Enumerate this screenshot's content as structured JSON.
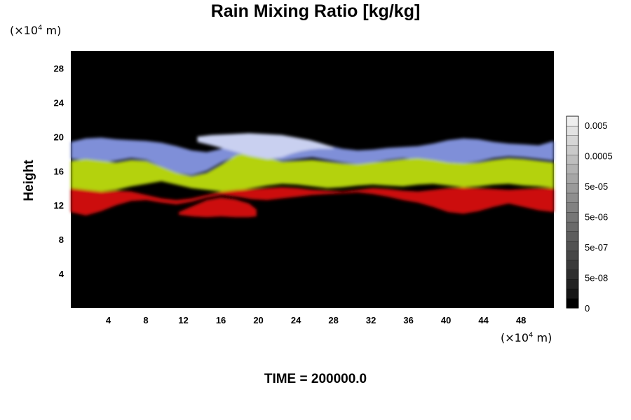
{
  "chart_data": {
    "type": "heatmap",
    "title": "Rain Mixing Ratio [kg/kg]",
    "ylabel": "Height",
    "xlabel": "",
    "x_unit": {
      "prefix": "(×10",
      "exp": "4",
      "suffix": " m)"
    },
    "y_unit": {
      "prefix": "(×10",
      "exp": "4",
      "suffix": " m)"
    },
    "xlim": [
      0,
      51.5
    ],
    "ylim": [
      0,
      30
    ],
    "x_ticks": [
      4,
      8,
      12,
      16,
      20,
      24,
      28,
      32,
      36,
      40,
      44,
      48
    ],
    "y_ticks": [
      4,
      8,
      12,
      16,
      20,
      24,
      28
    ],
    "background_color": "#000000",
    "fields": [
      {
        "name": "blue",
        "color": "#7f8fd8",
        "top": [
          19.4,
          19.8,
          19.9,
          19.7,
          19.6,
          19.5,
          19.3,
          18.9,
          18.4,
          18.2,
          18.6,
          19.6,
          20.1,
          20.2,
          20.1,
          19.8,
          19.4,
          19.0,
          18.6,
          18.4,
          18.5,
          18.7,
          18.8,
          18.9,
          19.2,
          19.6,
          19.8,
          19.7,
          19.4,
          19.2,
          19.1,
          19.0,
          19.5
        ],
        "bottom": [
          17.4,
          17.3,
          17.0,
          17.2,
          17.5,
          17.3,
          16.5,
          15.8,
          15.5,
          16.0,
          17.0,
          17.8,
          18.0,
          17.5,
          17.2,
          17.4,
          17.6,
          17.3,
          17.0,
          16.8,
          17.0,
          17.3,
          17.5,
          17.4,
          17.2,
          17.0,
          16.9,
          17.1,
          17.5,
          17.7,
          17.6,
          17.4,
          17.2
        ]
      },
      {
        "name": "green",
        "color": "#b4d20f",
        "top": [
          17.2,
          17.4,
          17.2,
          17.0,
          17.3,
          17.2,
          16.5,
          15.8,
          15.4,
          15.8,
          16.8,
          17.9,
          18.2,
          17.6,
          17.1,
          17.2,
          17.3,
          17.1,
          16.9,
          16.8,
          17.0,
          17.2,
          17.4,
          17.5,
          17.3,
          17.0,
          16.9,
          17.0,
          17.3,
          17.5,
          17.4,
          17.2,
          17.0
        ],
        "bottom": [
          14.0,
          13.8,
          13.6,
          13.8,
          14.2,
          14.5,
          14.8,
          14.4,
          14.0,
          13.8,
          13.6,
          13.7,
          14.0,
          14.3,
          14.5,
          14.4,
          14.2,
          14.0,
          14.1,
          14.3,
          14.4,
          14.3,
          14.2,
          14.4,
          14.5,
          14.3,
          14.1,
          14.2,
          14.4,
          14.5,
          14.3,
          14.2,
          14.0
        ]
      },
      {
        "name": "red",
        "color": "#cc1010",
        "top": [
          14.0,
          13.8,
          13.6,
          13.7,
          13.6,
          13.2,
          12.8,
          12.6,
          12.8,
          13.2,
          13.6,
          13.8,
          13.9,
          14.0,
          14.1,
          14.0,
          13.8,
          13.7,
          13.6,
          13.8,
          14.0,
          13.9,
          13.7,
          13.6,
          13.8,
          14.0,
          14.1,
          14.0,
          13.9,
          13.8,
          13.9,
          14.0,
          14.0
        ],
        "bottom": [
          11.2,
          10.8,
          11.3,
          12.0,
          12.5,
          12.6,
          12.3,
          12.1,
          12.4,
          12.9,
          13.2,
          13.0,
          12.7,
          12.6,
          12.8,
          13.0,
          13.2,
          13.3,
          13.4,
          13.5,
          13.3,
          13.0,
          12.6,
          12.3,
          11.8,
          11.2,
          11.0,
          11.3,
          11.8,
          12.2,
          11.8,
          11.4,
          11.2
        ]
      }
    ],
    "red_patch": {
      "x": [
        11.5,
        13,
        14.5,
        16,
        17.5,
        19,
        19.8
      ],
      "top": [
        11.2,
        11.9,
        12.6,
        12.9,
        12.7,
        12.2,
        11.5
      ],
      "bottom": [
        10.9,
        10.7,
        10.6,
        10.7,
        10.6,
        10.6,
        10.7
      ]
    },
    "white_plume": {
      "color": "#c9d0f0",
      "x": [
        13.5,
        15,
        17,
        19,
        21,
        22.5,
        23.5,
        24.5,
        25.5,
        26.5,
        28
      ],
      "top": [
        20.0,
        20.2,
        20.3,
        20.4,
        20.3,
        20.2,
        20.0,
        19.8,
        19.6,
        19.3,
        18.8
      ],
      "bottom": [
        19.4,
        19.0,
        18.4,
        17.8,
        17.4,
        17.6,
        18.0,
        18.3,
        18.5,
        18.6,
        18.6
      ]
    },
    "colorbar": {
      "labels": [
        "0.005",
        "0.0005",
        "5e-05",
        "5e-06",
        "5e-07",
        "5e-08",
        "0"
      ],
      "colors": [
        "#000000",
        "#161616",
        "#222222",
        "#2e2e2e",
        "#3a3a3a",
        "#464646",
        "#525252",
        "#5e5e5e",
        "#6a6a6a",
        "#767676",
        "#828282",
        "#8e8e8e",
        "#9a9a9a",
        "#a6a6a6",
        "#b2b2b2",
        "#bebebe",
        "#cacaca",
        "#d6d6d6",
        "#e2e2e2",
        "#eeeeee"
      ]
    },
    "time_label": "TIME = 200000.0",
    "grid": false,
    "legend": "colorbar-right"
  }
}
